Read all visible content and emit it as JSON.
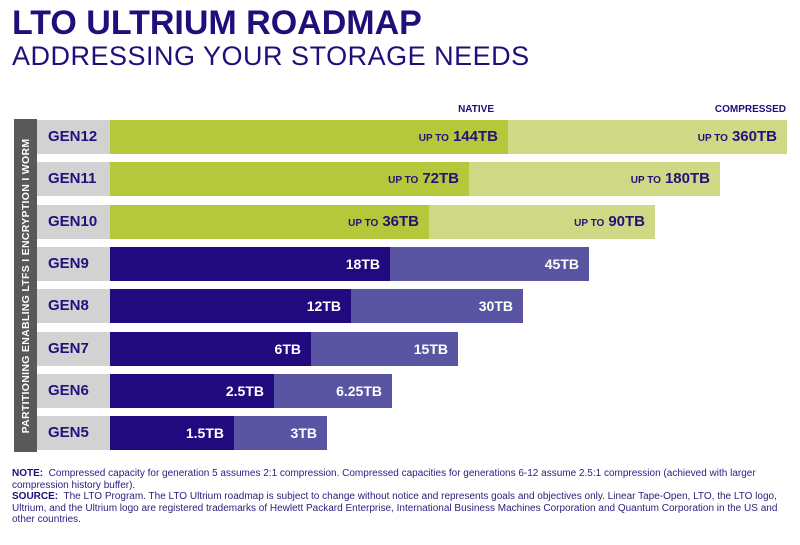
{
  "header": {
    "title": "LTO ULTRIUM ROADMAP",
    "subtitle": "ADDRESSING YOUR STORAGE NEEDS"
  },
  "legend": {
    "native": "NATIVE",
    "compressed": "COMPRESSED"
  },
  "sidebar": {
    "text": "PARTITIONING ENABLING LTFS  I  ENCRYPTION  I  WORM"
  },
  "colors": {
    "future_native": "#b5c73b",
    "future_compressed": "#cfd885",
    "current_native": "#21097e",
    "current_compressed": "#5a55a2",
    "gen_cell": "#d1d2d1",
    "sidebar": "#59595b",
    "text": "#21127a"
  },
  "chart_data": {
    "type": "bar",
    "orientation": "horizontal",
    "stacked": true,
    "title": "LTO ULTRIUM ROADMAP",
    "subtitle": "ADDRESSING YOUR STORAGE NEEDS",
    "categories": [
      "GEN12",
      "GEN11",
      "GEN10",
      "GEN9",
      "GEN8",
      "GEN7",
      "GEN6",
      "GEN5"
    ],
    "series": [
      {
        "name": "NATIVE",
        "unit": "TB",
        "values": [
          144,
          72,
          36,
          18,
          12,
          6,
          2.5,
          1.5
        ]
      },
      {
        "name": "COMPRESSED",
        "unit": "TB",
        "values": [
          360,
          180,
          90,
          45,
          30,
          15,
          6.25,
          3
        ]
      }
    ],
    "legend_placement": "top-right",
    "rows": [
      {
        "gen": "GEN12",
        "future": true,
        "native_prefix": "UP TO",
        "native": "144TB",
        "compressed_prefix": "UP TO",
        "compressed": "360TB"
      },
      {
        "gen": "GEN11",
        "future": true,
        "native_prefix": "UP TO",
        "native": "72TB",
        "compressed_prefix": "UP TO",
        "compressed": "180TB"
      },
      {
        "gen": "GEN10",
        "future": true,
        "native_prefix": "UP TO",
        "native": "36TB",
        "compressed_prefix": "UP TO",
        "compressed": "90TB"
      },
      {
        "gen": "GEN9",
        "future": false,
        "native_prefix": "",
        "native": "18TB",
        "compressed_prefix": "",
        "compressed": "45TB"
      },
      {
        "gen": "GEN8",
        "future": false,
        "native_prefix": "",
        "native": "12TB",
        "compressed_prefix": "",
        "compressed": "30TB"
      },
      {
        "gen": "GEN7",
        "future": false,
        "native_prefix": "",
        "native": "6TB",
        "compressed_prefix": "",
        "compressed": "15TB"
      },
      {
        "gen": "GEN6",
        "future": false,
        "native_prefix": "",
        "native": "2.5TB",
        "compressed_prefix": "",
        "compressed": "6.25TB"
      },
      {
        "gen": "GEN5",
        "future": false,
        "native_prefix": "",
        "native": "1.5TB",
        "compressed_prefix": "",
        "compressed": "3TB"
      }
    ]
  },
  "footer": {
    "note_label": "NOTE:",
    "note_text": "Compressed capacity for generation 5 assumes 2:1 compression. Compressed capacities for generations 6-12 assume 2.5:1 compression (achieved with larger compression history buffer).",
    "source_label": "SOURCE:",
    "source_text": "The LTO Program. The LTO Ultrium roadmap is subject to change without notice and represents goals and objectives only. Linear Tape-Open, LTO, the LTO logo, Ultrium, and the Ultrium logo are registered trademarks of Hewlett Packard Enterprise, International Business Machines Corporation and Quantum Corporation in the US and other countries."
  }
}
